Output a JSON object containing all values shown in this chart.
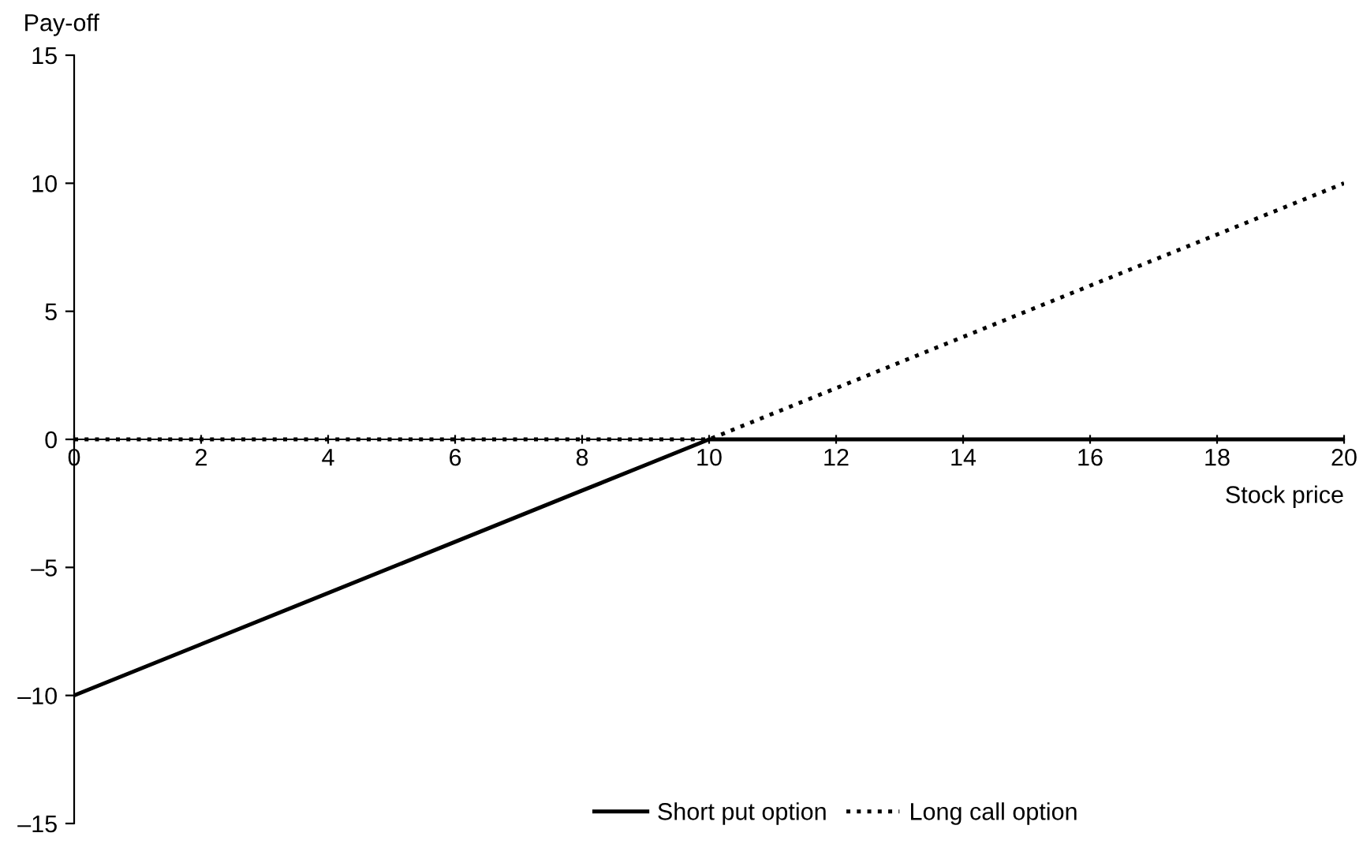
{
  "chart_data": {
    "type": "line",
    "xlabel": "Stock price",
    "ylabel": "Pay-off",
    "series": [
      {
        "name": "Short put option",
        "color": "#000000",
        "line_style": "solid",
        "x": [
          0,
          8,
          9,
          10,
          20
        ],
        "values": [
          -10,
          -2,
          -1,
          0,
          0
        ]
      },
      {
        "name": "Long call option",
        "color": "#000000",
        "line_style": "dotted",
        "x": [
          0,
          10,
          20
        ],
        "values": [
          0,
          0,
          10
        ]
      }
    ],
    "xlim": [
      0,
      20
    ],
    "xticks": [
      0,
      2,
      4,
      6,
      8,
      10,
      12,
      14,
      16,
      18,
      20
    ],
    "ylim": [
      -15,
      15
    ],
    "yticks": [
      {
        "value": -15,
        "label": "–15"
      },
      {
        "value": -10,
        "label": "–10"
      },
      {
        "value": -5,
        "label": "–5"
      },
      0,
      5,
      10,
      15
    ],
    "grid": false,
    "legend": "bottom",
    "marker": "none"
  }
}
